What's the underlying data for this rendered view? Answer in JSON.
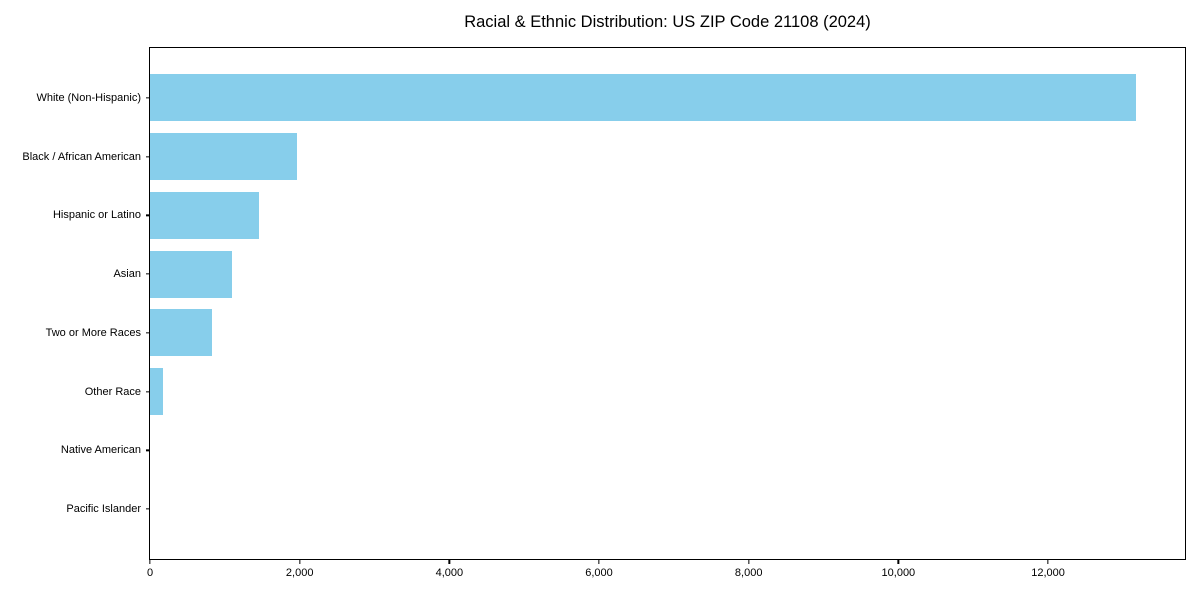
{
  "chart_data": {
    "type": "bar",
    "orientation": "horizontal",
    "title": "Racial & Ethnic Distribution: US ZIP Code 21108 (2024)",
    "categories": [
      "White (Non-Hispanic)",
      "Black / African American",
      "Hispanic or Latino",
      "Asian",
      "Two or More Races",
      "Other Race",
      "Native American",
      "Pacific Islander"
    ],
    "values": [
      13170,
      1960,
      1450,
      1090,
      825,
      170,
      0,
      0
    ],
    "bar_color": "#87CEEB",
    "xlabel": "",
    "ylabel": "",
    "xlim": [
      0,
      13830
    ],
    "x_ticks": [
      0,
      2000,
      4000,
      6000,
      8000,
      10000,
      12000
    ],
    "x_tick_labels": [
      "0",
      "2,000",
      "4,000",
      "6,000",
      "8,000",
      "10,000",
      "12,000"
    ],
    "grid": false,
    "legend": null,
    "background_color": "#ffffff",
    "text_color": "#000000"
  }
}
